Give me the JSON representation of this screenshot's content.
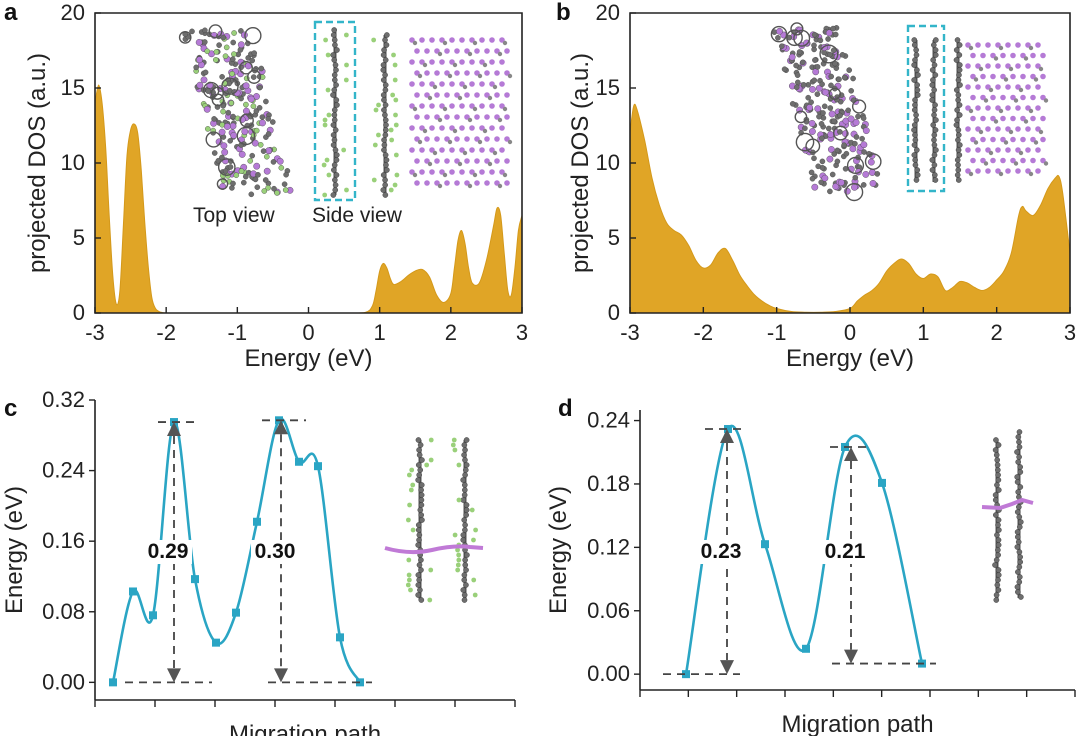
{
  "colors": {
    "dos_fill": "#e0a526",
    "curve": "#2aa5c4",
    "carbon_atom": "#6e6e6e",
    "li_atom": "#b57ad6",
    "f_atom": "#9ad07a",
    "highlight_box": "#33b5c9",
    "path_line": "#c07ad6"
  },
  "chart_data": [
    {
      "panel": "a",
      "type": "area",
      "xlabel": "Energy (eV)",
      "ylabel": "projected DOS (a.u.)",
      "xlim": [
        -3,
        3
      ],
      "ylim": [
        0,
        20
      ],
      "xticks": [
        "-3",
        "-2",
        "-1",
        "0",
        "1",
        "2",
        "3"
      ],
      "yticks": [
        "0",
        "5",
        "10",
        "15",
        "20"
      ],
      "x": [
        -3.0,
        -2.95,
        -2.9,
        -2.85,
        -2.8,
        -2.75,
        -2.7,
        -2.65,
        -2.6,
        -2.55,
        -2.5,
        -2.45,
        -2.4,
        -2.35,
        -2.3,
        -2.25,
        -2.2,
        -2.15,
        -2.1,
        -2.05,
        -2.0,
        -1.9,
        -1.5,
        -1.0,
        0.0,
        0.5,
        0.8,
        0.9,
        0.95,
        1.0,
        1.05,
        1.1,
        1.15,
        1.2,
        1.3,
        1.4,
        1.5,
        1.6,
        1.7,
        1.8,
        1.9,
        2.0,
        2.05,
        2.1,
        2.15,
        2.2,
        2.25,
        2.3,
        2.4,
        2.5,
        2.6,
        2.65,
        2.7,
        2.75,
        2.8,
        2.85,
        2.9,
        2.95,
        3.0
      ],
      "y": [
        14.0,
        15.2,
        14.0,
        11.0,
        6.5,
        2.5,
        0.6,
        1.5,
        6.0,
        10.5,
        12.2,
        12.6,
        12.0,
        9.5,
        6.0,
        3.0,
        1.0,
        0.3,
        0.1,
        0.03,
        0.0,
        0.0,
        0.0,
        0.0,
        0.0,
        0.0,
        0.05,
        0.5,
        1.5,
        2.8,
        3.3,
        3.0,
        2.3,
        1.9,
        2.1,
        2.5,
        2.8,
        2.9,
        2.4,
        1.2,
        0.7,
        1.3,
        3.0,
        4.8,
        5.5,
        4.6,
        3.0,
        2.0,
        2.0,
        3.5,
        5.8,
        7.0,
        6.5,
        4.0,
        1.5,
        1.2,
        3.0,
        5.5,
        6.5
      ],
      "inset_labels": [
        "Top view",
        "Side view"
      ]
    },
    {
      "panel": "b",
      "type": "area",
      "xlabel": "Energy (eV)",
      "ylabel": "projected DOS (a.u.)",
      "xlim": [
        -3,
        3
      ],
      "ylim": [
        0,
        20
      ],
      "xticks": [
        "-3",
        "-2",
        "-1",
        "0",
        "1",
        "2",
        "3"
      ],
      "yticks": [
        "0",
        "5",
        "10",
        "15",
        "20"
      ],
      "x": [
        -3.0,
        -2.95,
        -2.9,
        -2.8,
        -2.7,
        -2.6,
        -2.5,
        -2.4,
        -2.3,
        -2.2,
        -2.1,
        -2.0,
        -1.9,
        -1.8,
        -1.7,
        -1.6,
        -1.5,
        -1.4,
        -1.3,
        -1.2,
        -1.1,
        -1.0,
        -0.8,
        -0.6,
        -0.4,
        -0.2,
        0.0,
        0.1,
        0.2,
        0.3,
        0.4,
        0.5,
        0.6,
        0.7,
        0.8,
        0.9,
        1.0,
        1.1,
        1.2,
        1.3,
        1.4,
        1.5,
        1.6,
        1.7,
        1.8,
        1.9,
        2.0,
        2.1,
        2.2,
        2.3,
        2.35,
        2.4,
        2.5,
        2.6,
        2.7,
        2.8,
        2.85,
        2.9,
        3.0
      ],
      "y": [
        12.0,
        13.8,
        13.5,
        11.5,
        9.0,
        7.2,
        6.0,
        5.5,
        5.2,
        4.5,
        3.5,
        3.0,
        3.2,
        4.0,
        4.3,
        3.5,
        2.5,
        1.8,
        1.2,
        0.8,
        0.5,
        0.3,
        0.1,
        0.05,
        0.05,
        0.1,
        0.3,
        0.8,
        1.2,
        1.5,
        2.0,
        2.8,
        3.3,
        3.6,
        3.3,
        2.6,
        2.3,
        2.6,
        2.4,
        1.5,
        1.7,
        2.1,
        2.0,
        1.7,
        1.5,
        1.7,
        2.2,
        2.8,
        4.0,
        6.5,
        7.1,
        6.8,
        6.5,
        7.2,
        8.3,
        9.0,
        9.1,
        8.0,
        4.0
      ],
      "inset_labels": []
    },
    {
      "panel": "c",
      "type": "line",
      "xlabel": "Migration path",
      "ylabel": "Energy (eV)",
      "xlim": [
        0,
        15.5
      ],
      "ylim": [
        -0.02,
        0.32
      ],
      "yticks": [
        "0.00",
        "0.08",
        "0.16",
        "0.24",
        "0.32"
      ],
      "x": [
        0,
        1,
        2,
        3,
        4,
        5,
        6,
        7,
        8,
        9,
        10,
        11,
        12,
        13,
        14
      ],
      "y": [
        0.0,
        0.103,
        0.076,
        0.295,
        0.117,
        0.045,
        0.079,
        0.182,
        0.297,
        0.25,
        0.245,
        0.051,
        0.0,
        null,
        null
      ],
      "barriers": [
        "0.29",
        "0.30"
      ]
    },
    {
      "panel": "d",
      "type": "line",
      "xlabel": "Migration path",
      "ylabel": "Energy (eV)",
      "xlim": [
        0,
        12
      ],
      "ylim": [
        -0.015,
        0.25
      ],
      "yticks": [
        "0.00",
        "0.06",
        "0.12",
        "0.18",
        "0.24"
      ],
      "x": [
        0,
        1,
        2,
        3,
        4,
        5,
        6,
        7,
        8
      ],
      "y": [
        0.0,
        0.232,
        0.123,
        0.024,
        0.215,
        0.181,
        0.01,
        null,
        null
      ],
      "barriers": [
        "0.23",
        "0.21"
      ]
    }
  ]
}
